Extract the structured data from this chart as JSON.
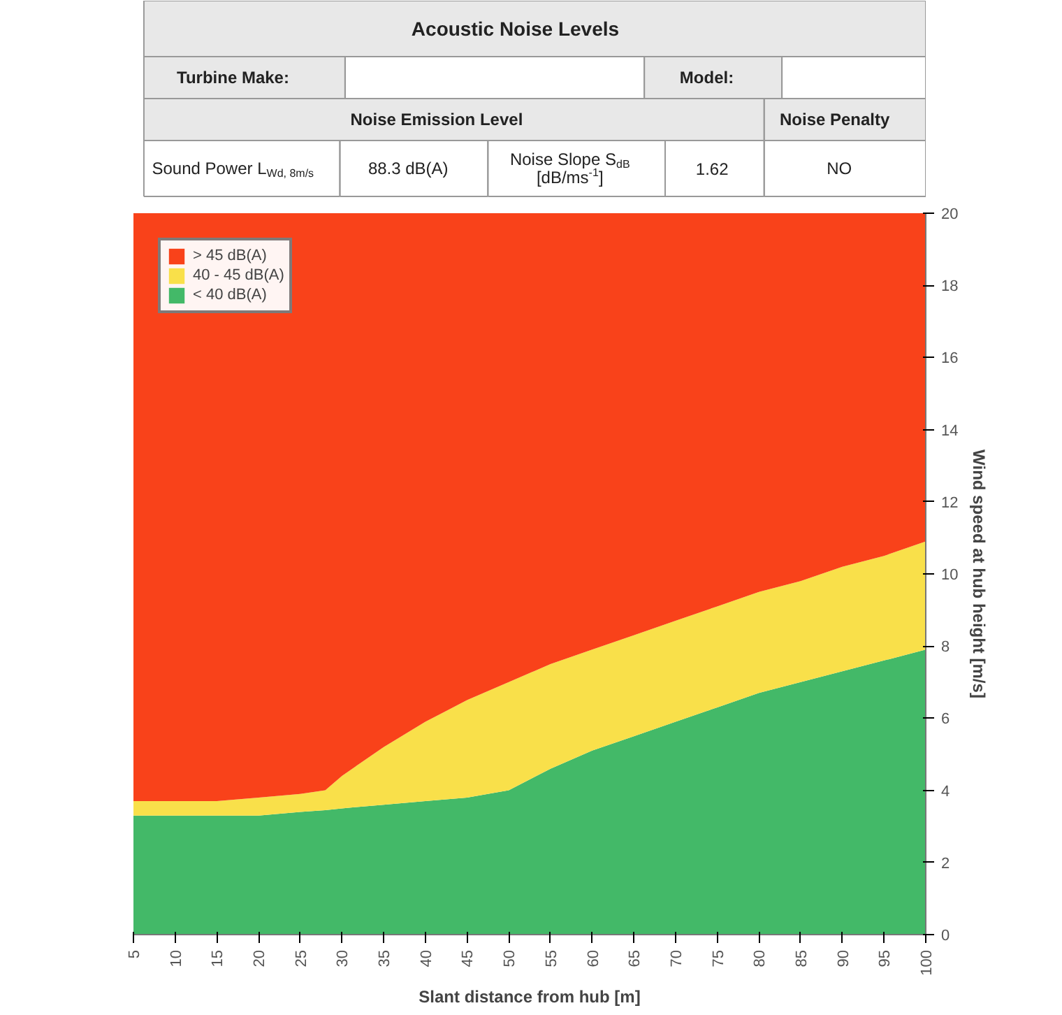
{
  "chart_data": [
    {
      "type": "other",
      "title": "Acoustic Noise Levels",
      "annotations": [
        "Turbine Make:",
        "Model:",
        "Noise Emission Level",
        "Noise Penalty",
        "Sound Power L$_{Wd, 8m/s}$",
        "88.3 dB(A)",
        "Noise Slope S$_{dB}$ [dB/ms$^{-1}$]",
        "1.62",
        "NO"
      ]
    },
    {
      "type": "area",
      "stacked": true,
      "xlabel": "Slant distance from hub [m]",
      "ylabel": "Wind speed at hub height [m/s]",
      "x": [
        5,
        10,
        15,
        20,
        25,
        28,
        30,
        35,
        40,
        45,
        50,
        55,
        60,
        65,
        70,
        75,
        80,
        85,
        90,
        95,
        100
      ],
      "xlim": [
        5,
        100
      ],
      "xticks": [
        5,
        10,
        15,
        20,
        25,
        30,
        35,
        40,
        45,
        50,
        55,
        60,
        65,
        70,
        75,
        80,
        85,
        90,
        95,
        100
      ],
      "ylim": [
        0,
        20
      ],
      "yticks": [
        0,
        2,
        4,
        6,
        8,
        10,
        12,
        14,
        16,
        18,
        20
      ],
      "legend": "top left",
      "series": [
        {
          "name": "< 40 dB(A)",
          "color": "#43b968",
          "values": [
            3.3,
            3.3,
            3.3,
            3.3,
            3.4,
            3.45,
            3.5,
            3.6,
            3.7,
            3.8,
            4.0,
            4.6,
            5.1,
            5.5,
            5.9,
            6.3,
            6.7,
            7.0,
            7.3,
            7.6,
            7.9
          ]
        },
        {
          "name": "40 - 45 dB(A)",
          "color": "#f9e04a",
          "values": [
            0.4,
            0.4,
            0.4,
            0.5,
            0.5,
            0.55,
            0.9,
            1.6,
            2.2,
            2.7,
            3.0,
            2.9,
            2.8,
            2.8,
            2.8,
            2.8,
            2.8,
            2.8,
            2.9,
            2.9,
            3.0
          ]
        },
        {
          "name": "> 45 dB(A)",
          "color": "#f9421a",
          "values": [
            16.3,
            16.3,
            16.3,
            16.2,
            16.1,
            16.0,
            15.6,
            14.8,
            14.1,
            13.5,
            13.0,
            12.5,
            12.1,
            11.7,
            11.3,
            10.9,
            10.5,
            10.2,
            9.8,
            9.5,
            9.1
          ]
        }
      ]
    }
  ]
}
